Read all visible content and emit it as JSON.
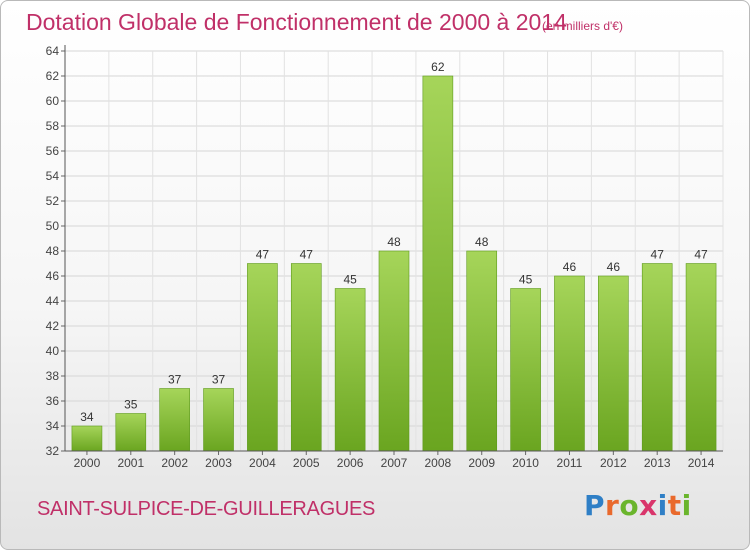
{
  "header": {
    "title": "Dotation Globale de Fonctionnement de 2000 à 2014",
    "unit_note": "(en milliers d'€)"
  },
  "footer": {
    "commune": "SAINT-SULPICE-DE-GUILLERAGUES",
    "logo_letters": [
      "P",
      "r",
      "o",
      "x",
      "i",
      "t",
      "i"
    ],
    "logo_colors": [
      "#2f7fc6",
      "#e9692c",
      "#6ab52c",
      "#d9356b",
      "#2f7fc6",
      "#e9692c",
      "#6ab52c"
    ]
  },
  "colors": {
    "accent": "#c03068",
    "bar_light": "#a6d55a",
    "bar_dark": "#6aa520"
  },
  "chart_data": {
    "type": "bar",
    "categories": [
      "2000",
      "2001",
      "2002",
      "2003",
      "2004",
      "2005",
      "2006",
      "2007",
      "2008",
      "2009",
      "2010",
      "2011",
      "2012",
      "2013",
      "2014"
    ],
    "values": [
      34,
      35,
      37,
      37,
      47,
      47,
      45,
      48,
      62,
      48,
      45,
      46,
      46,
      47,
      47
    ],
    "ylim": [
      32,
      64
    ],
    "yticks": [
      32,
      34,
      36,
      38,
      40,
      42,
      44,
      46,
      48,
      50,
      52,
      54,
      56,
      58,
      60,
      62,
      64
    ],
    "grid": true,
    "data_labels": true
  }
}
